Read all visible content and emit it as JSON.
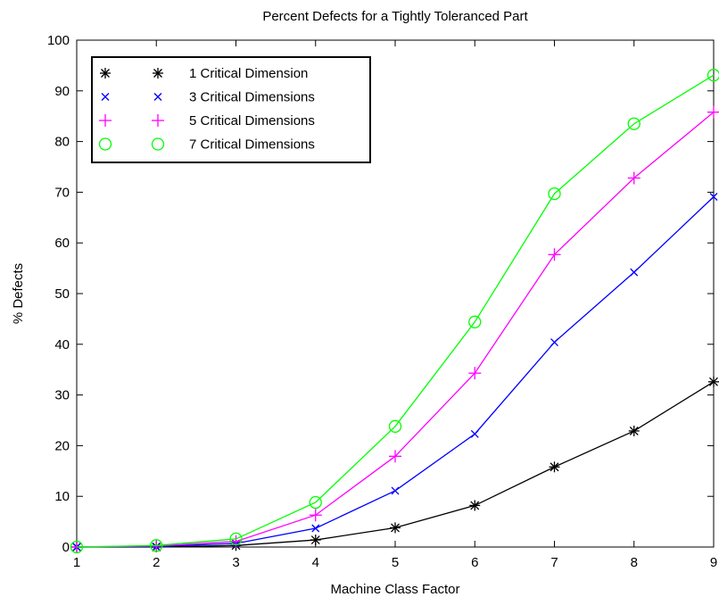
{
  "chart_data": {
    "type": "line",
    "title": "Percent Defects for a Tightly Toleranced Part",
    "xlabel": "Machine Class Factor",
    "ylabel": "% Defects",
    "xlim": [
      1,
      9
    ],
    "ylim": [
      0,
      100
    ],
    "x_ticks": [
      1,
      2,
      3,
      4,
      5,
      6,
      7,
      8,
      9
    ],
    "y_ticks": [
      0,
      10,
      20,
      30,
      40,
      50,
      60,
      70,
      80,
      90,
      100
    ],
    "grid": false,
    "legend_position": "top-left",
    "x": [
      1,
      2,
      3,
      4,
      5,
      6,
      7,
      8,
      9
    ],
    "series": [
      {
        "name": "1 Critical Dimension",
        "color": "#000000",
        "marker": "asterisk",
        "values": [
          0,
          0,
          0.3,
          1.4,
          3.8,
          8.2,
          15.8,
          22.9,
          32.6
        ]
      },
      {
        "name": "3 Critical Dimensions",
        "color": "#0000ff",
        "marker": "x",
        "values": [
          0,
          0.1,
          0.7,
          3.7,
          11.1,
          22.3,
          40.4,
          54.2,
          69.1
        ]
      },
      {
        "name": "5 Critical Dimensions",
        "color": "#ff00ff",
        "marker": "plus",
        "values": [
          0,
          0.2,
          1.1,
          6.3,
          17.9,
          34.3,
          57.7,
          72.8,
          85.8
        ]
      },
      {
        "name": "7 Critical Dimensions",
        "color": "#00ff00",
        "marker": "circle",
        "values": [
          0,
          0.3,
          1.6,
          8.8,
          23.8,
          44.4,
          69.7,
          83.5,
          93.1
        ]
      }
    ]
  }
}
